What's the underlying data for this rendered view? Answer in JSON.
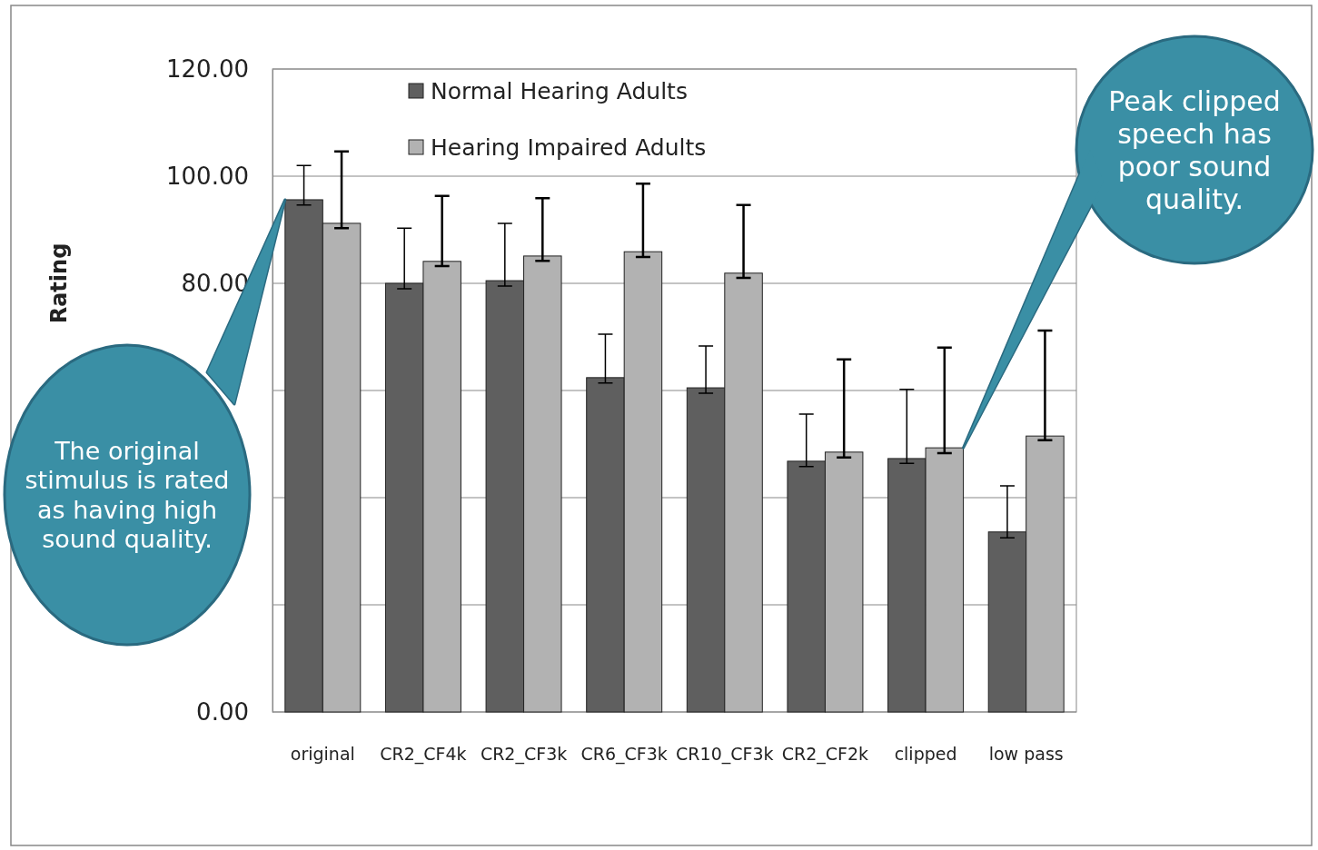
{
  "chart_data": {
    "type": "bar",
    "ylabel": "Rating",
    "categories": [
      "original",
      "CR2_CF4k",
      "CR2_CF3k",
      "CR6_CF3k",
      "CR10_CF3k",
      "CR2_CF2k",
      "clipped",
      "low pass"
    ],
    "series": [
      {
        "name": "Normal Hearing Adults",
        "color": "#5f5f5f",
        "values": [
          95.6,
          80.0,
          80.5,
          62.4,
          60.5,
          46.8,
          47.3,
          33.6
        ],
        "errors": [
          [
            94.6,
            102.0
          ],
          [
            79.0,
            90.3
          ],
          [
            79.5,
            91.2
          ],
          [
            61.4,
            70.5
          ],
          [
            59.5,
            68.3
          ],
          [
            45.8,
            55.6
          ],
          [
            46.4,
            60.2
          ],
          [
            32.5,
            42.2
          ]
        ]
      },
      {
        "name": "Hearing Impaired Adults",
        "color": "#b2b2b2",
        "values": [
          91.2,
          84.1,
          85.1,
          85.9,
          81.9,
          48.5,
          49.3,
          51.5
        ],
        "errors": [
          [
            90.3,
            104.6
          ],
          [
            83.2,
            96.3
          ],
          [
            84.2,
            95.9
          ],
          [
            84.9,
            98.6
          ],
          [
            81.0,
            94.6
          ],
          [
            47.5,
            65.8
          ],
          [
            48.3,
            68.0
          ],
          [
            50.7,
            71.2
          ]
        ]
      }
    ],
    "ylim": [
      0,
      120
    ],
    "yticks": [
      {
        "value": 0,
        "label": "0.00"
      },
      {
        "value": 20,
        "label": null
      },
      {
        "value": 40,
        "label": null
      },
      {
        "value": 60,
        "label": null
      },
      {
        "value": 80,
        "label": "80.00"
      },
      {
        "value": 100,
        "label": "100.00"
      },
      {
        "value": 120,
        "label": "120.00"
      }
    ],
    "grid": "y",
    "legend": "top left",
    "annotations": [
      "The original stimulus is rated as having high sound quality.",
      "Peak clipped speech has poor sound quality."
    ]
  }
}
